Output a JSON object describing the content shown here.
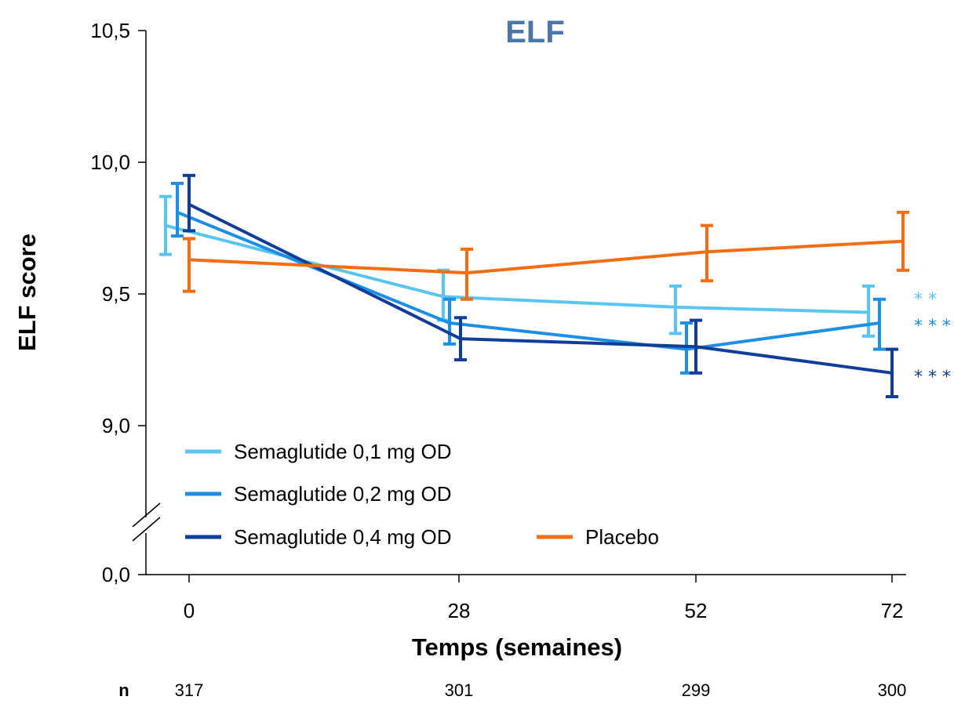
{
  "chart_data": {
    "type": "line",
    "title": "ELF",
    "xlabel": "Temps (semaines)",
    "ylabel": "ELF score",
    "x": [
      0,
      28,
      52,
      72
    ],
    "x_tick_labels": [
      "0",
      "28",
      "52",
      "72"
    ],
    "y_tick_labels": [
      "10,5",
      "10,0",
      "9,5",
      "9,0",
      "0,0"
    ],
    "y_ticks": [
      10.5,
      10.0,
      9.5,
      9.0,
      0.0
    ],
    "ylim_upper_segment": [
      8.75,
      10.5
    ],
    "axis_break": true,
    "grid": false,
    "n_title": "n",
    "n_values": [
      "317",
      "301",
      "299",
      "300"
    ],
    "legend_position": "bottom-left",
    "series": [
      {
        "name": "Semaglutide 0,1 mg OD",
        "color": "#5bc5f2",
        "values": [
          9.76,
          9.49,
          9.45,
          9.43
        ],
        "err_low": [
          9.65,
          9.4,
          9.35,
          9.34
        ],
        "err_high": [
          9.87,
          9.59,
          9.53,
          9.53
        ],
        "significance": "**"
      },
      {
        "name": "Semaglutide 0,2 mg OD",
        "color": "#1a8fe3",
        "values": [
          9.81,
          9.39,
          9.29,
          9.39
        ],
        "err_low": [
          9.72,
          9.31,
          9.2,
          9.29
        ],
        "err_high": [
          9.92,
          9.48,
          9.39,
          9.48
        ],
        "significance": "***"
      },
      {
        "name": "Semaglutide 0,4 mg OD",
        "color": "#0f3d99",
        "values": [
          9.84,
          9.33,
          9.3,
          9.2
        ],
        "err_low": [
          9.74,
          9.25,
          9.2,
          9.11
        ],
        "err_high": [
          9.95,
          9.41,
          9.4,
          9.29
        ],
        "significance": "***"
      },
      {
        "name": "Placebo",
        "color": "#f46d12",
        "values": [
          9.63,
          9.58,
          9.66,
          9.7
        ],
        "err_low": [
          9.51,
          9.48,
          9.55,
          9.59
        ],
        "err_high": [
          9.71,
          9.67,
          9.76,
          9.81
        ],
        "significance": ""
      }
    ]
  }
}
